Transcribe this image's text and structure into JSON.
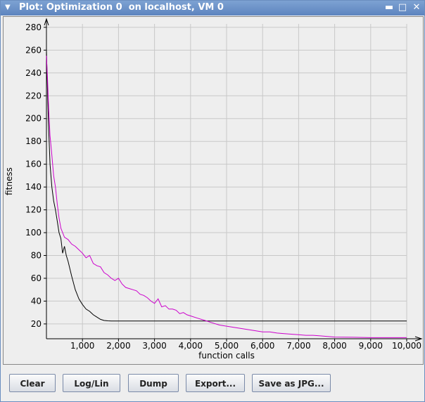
{
  "window": {
    "title": "Plot: Optimization 0  on localhost, VM 0"
  },
  "icons": {
    "menu": "triangle-down-icon",
    "minimize": "minimize-icon",
    "maximize": "maximize-icon",
    "close": "close-icon"
  },
  "buttons": {
    "clear": "Clear",
    "loglin": "Log/Lin",
    "dump": "Dump",
    "export": "Export...",
    "save_jpg": "Save as JPG..."
  },
  "chart_data": {
    "type": "line",
    "xlabel": "function calls",
    "ylabel": "fitness",
    "xlim": [
      0,
      10000
    ],
    "ylim": [
      7,
      283
    ],
    "xticks": [
      1000,
      2000,
      3000,
      4000,
      5000,
      6000,
      7000,
      8000,
      9000,
      10000
    ],
    "xtick_labels": [
      "1,000",
      "2,000",
      "3,000",
      "4,000",
      "5,000",
      "6,000",
      "7,000",
      "8,000",
      "9,000",
      "10,000"
    ],
    "yticks": [
      20,
      40,
      60,
      80,
      100,
      120,
      140,
      160,
      180,
      200,
      220,
      240,
      260,
      280
    ],
    "ytick_labels": [
      "20",
      "40",
      "60",
      "80",
      "100",
      "120",
      "140",
      "160",
      "180",
      "200",
      "220",
      "240",
      "260",
      "280"
    ],
    "grid": true,
    "colors": {
      "series0": "#000000",
      "series1": "#cc00cc"
    },
    "series": [
      {
        "color": "#000000",
        "points": [
          [
            0,
            260
          ],
          [
            50,
            200
          ],
          [
            100,
            160
          ],
          [
            150,
            140
          ],
          [
            200,
            128
          ],
          [
            250,
            120
          ],
          [
            300,
            110
          ],
          [
            350,
            100
          ],
          [
            400,
            95
          ],
          [
            450,
            82
          ],
          [
            500,
            88
          ],
          [
            550,
            80
          ],
          [
            600,
            75
          ],
          [
            700,
            62
          ],
          [
            800,
            50
          ],
          [
            900,
            42
          ],
          [
            1000,
            37
          ],
          [
            1100,
            33
          ],
          [
            1200,
            31
          ],
          [
            1300,
            28
          ],
          [
            1400,
            26
          ],
          [
            1500,
            24
          ],
          [
            1600,
            23
          ],
          [
            1700,
            22.7
          ],
          [
            1800,
            22.5
          ],
          [
            2000,
            22.5
          ],
          [
            4000,
            22.5
          ],
          [
            6000,
            22.5
          ],
          [
            8000,
            22.5
          ],
          [
            10000,
            22.5
          ]
        ]
      },
      {
        "color": "#cc00cc",
        "points": [
          [
            0,
            255
          ],
          [
            30,
            235
          ],
          [
            60,
            210
          ],
          [
            100,
            185
          ],
          [
            150,
            168
          ],
          [
            200,
            150
          ],
          [
            250,
            140
          ],
          [
            300,
            125
          ],
          [
            350,
            113
          ],
          [
            400,
            104
          ],
          [
            450,
            100
          ],
          [
            500,
            96
          ],
          [
            600,
            94
          ],
          [
            700,
            90
          ],
          [
            800,
            88
          ],
          [
            900,
            85
          ],
          [
            1000,
            82
          ],
          [
            1100,
            78
          ],
          [
            1200,
            80
          ],
          [
            1300,
            73
          ],
          [
            1400,
            71
          ],
          [
            1500,
            70
          ],
          [
            1600,
            65
          ],
          [
            1700,
            63
          ],
          [
            1800,
            60
          ],
          [
            1900,
            58
          ],
          [
            2000,
            60
          ],
          [
            2100,
            55
          ],
          [
            2200,
            52
          ],
          [
            2300,
            51
          ],
          [
            2400,
            50
          ],
          [
            2500,
            49
          ],
          [
            2600,
            46
          ],
          [
            2700,
            45
          ],
          [
            2800,
            43
          ],
          [
            2900,
            40
          ],
          [
            3000,
            38
          ],
          [
            3100,
            42
          ],
          [
            3200,
            35
          ],
          [
            3300,
            36
          ],
          [
            3400,
            33
          ],
          [
            3500,
            33
          ],
          [
            3600,
            32
          ],
          [
            3700,
            29
          ],
          [
            3800,
            30
          ],
          [
            3900,
            28
          ],
          [
            4000,
            27
          ],
          [
            4200,
            25
          ],
          [
            4400,
            23
          ],
          [
            4600,
            21
          ],
          [
            4800,
            19
          ],
          [
            5000,
            18
          ],
          [
            5200,
            17
          ],
          [
            5400,
            16
          ],
          [
            5600,
            15
          ],
          [
            5800,
            14
          ],
          [
            6000,
            13
          ],
          [
            6200,
            13
          ],
          [
            6400,
            12
          ],
          [
            6600,
            11.5
          ],
          [
            6800,
            11
          ],
          [
            7000,
            10.5
          ],
          [
            7200,
            10
          ],
          [
            7400,
            10
          ],
          [
            7600,
            9.5
          ],
          [
            7800,
            9
          ],
          [
            8000,
            8.5
          ],
          [
            8500,
            8.3
          ],
          [
            9000,
            8
          ],
          [
            9500,
            8
          ],
          [
            10000,
            8
          ]
        ]
      }
    ]
  }
}
